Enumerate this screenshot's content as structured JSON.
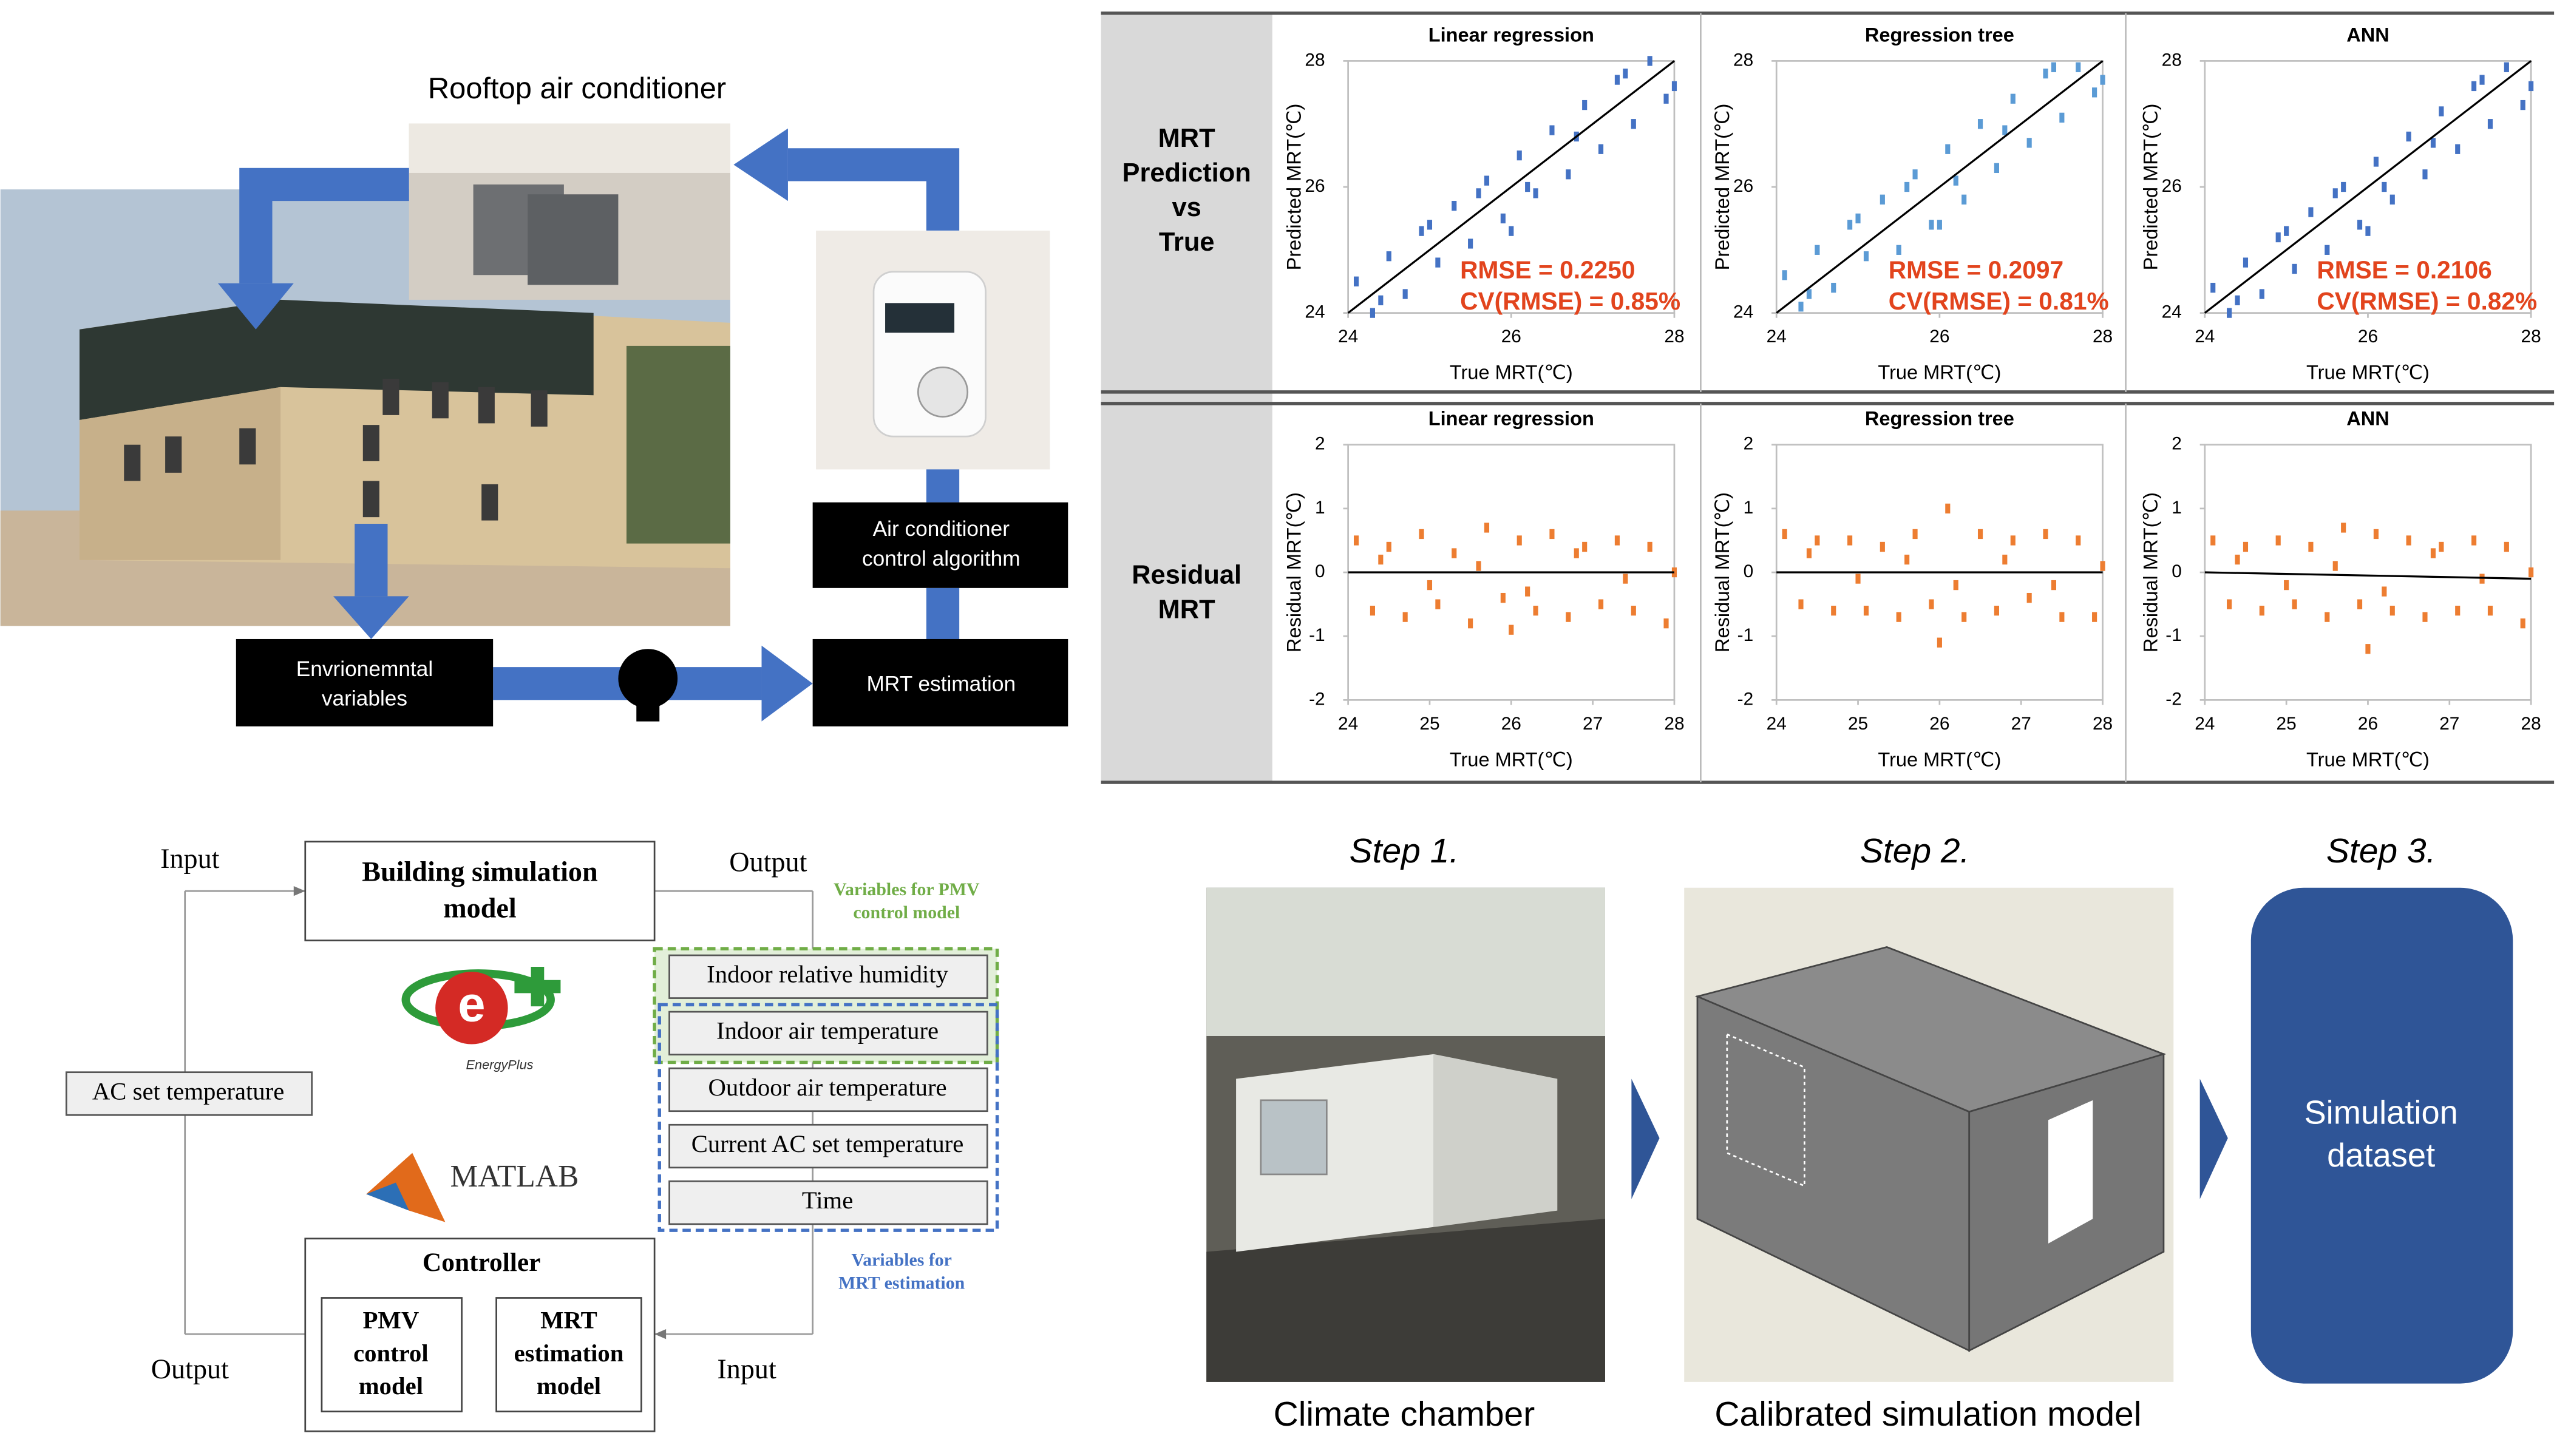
{
  "system": {
    "title": "Rooftop air conditioner",
    "nodes": [
      [
        "Envrionemntal",
        "variables"
      ],
      [
        "MRT estimation"
      ],
      [
        "Air conditioner",
        "control algorithm"
      ]
    ]
  },
  "row_labels": [
    [
      "MRT",
      "Prediction",
      "vs",
      "True"
    ],
    [
      "Residual",
      "MRT"
    ]
  ],
  "chart_data": [
    {
      "type": "scatter",
      "title": "Linear regression",
      "xlabel": "True MRT(℃)",
      "ylabel": "Predicted MRT(℃)",
      "xlim": [
        24,
        28
      ],
      "ylim": [
        24,
        28
      ],
      "xticks": [
        24,
        26,
        28
      ],
      "yticks": [
        24,
        26,
        28
      ],
      "annotations": [
        "RMSE  =  0.2250",
        "CV(RMSE)  =  0.85%"
      ],
      "series": [
        {
          "color": "#4472c4",
          "x": [
            24.1,
            24.3,
            24.5,
            24.7,
            24.9,
            25.1,
            25.3,
            25.5,
            25.7,
            25.9,
            26.1,
            26.3,
            26.5,
            26.7,
            26.9,
            27.1,
            27.3,
            27.5,
            27.7,
            27.9,
            24.4,
            25.0,
            25.6,
            26.2,
            26.8,
            27.4,
            28.0,
            26.0
          ],
          "values": [
            24.5,
            24.0,
            24.9,
            24.3,
            25.3,
            24.8,
            25.7,
            25.1,
            26.1,
            25.5,
            26.5,
            25.9,
            26.9,
            26.2,
            27.3,
            26.6,
            27.7,
            27.0,
            28.0,
            27.4,
            24.2,
            25.4,
            25.9,
            26.0,
            26.8,
            27.8,
            27.6,
            25.3
          ]
        },
        {
          "type": "line",
          "color": "#000000",
          "x": [
            24,
            28
          ],
          "values": [
            24,
            28
          ]
        }
      ]
    },
    {
      "type": "scatter",
      "title": "Regression tree",
      "xlabel": "True MRT(℃)",
      "ylabel": "Predicted MRT(℃)",
      "xlim": [
        24,
        28
      ],
      "ylim": [
        24,
        28
      ],
      "xticks": [
        24,
        26,
        28
      ],
      "yticks": [
        24,
        26,
        28
      ],
      "annotations": [
        "RMSE  =  0.2097",
        "CV(RMSE)  =  0.81%"
      ],
      "series": [
        {
          "color": "#5b9bd5",
          "x": [
            24.1,
            24.3,
            24.5,
            24.7,
            24.9,
            25.1,
            25.3,
            25.5,
            25.7,
            25.9,
            26.1,
            26.3,
            26.5,
            26.7,
            26.9,
            27.1,
            27.3,
            27.5,
            27.7,
            27.9,
            24.4,
            25.0,
            25.6,
            26.2,
            26.8,
            27.4,
            28.0,
            26.0
          ],
          "values": [
            24.6,
            24.1,
            25.0,
            24.4,
            25.4,
            24.9,
            25.8,
            25.0,
            26.2,
            25.4,
            26.6,
            25.8,
            27.0,
            26.3,
            27.4,
            26.7,
            27.8,
            27.1,
            27.9,
            27.5,
            24.3,
            25.5,
            26.0,
            26.1,
            26.9,
            27.9,
            27.7,
            25.4
          ]
        },
        {
          "type": "line",
          "color": "#000000",
          "x": [
            24,
            28
          ],
          "values": [
            24,
            28
          ]
        }
      ]
    },
    {
      "type": "scatter",
      "title": "ANN",
      "xlabel": "True MRT(℃)",
      "ylabel": "Predicted MRT(℃)",
      "xlim": [
        24,
        28
      ],
      "ylim": [
        24,
        28
      ],
      "xticks": [
        24,
        26,
        28
      ],
      "yticks": [
        24,
        26,
        28
      ],
      "annotations": [
        "RMSE  =  0.2106",
        "CV(RMSE)  =  0.82%"
      ],
      "series": [
        {
          "color": "#4472c4",
          "x": [
            24.1,
            24.3,
            24.5,
            24.7,
            24.9,
            25.1,
            25.3,
            25.5,
            25.7,
            25.9,
            26.1,
            26.3,
            26.5,
            26.7,
            26.9,
            27.1,
            27.3,
            27.5,
            27.7,
            27.9,
            24.4,
            25.0,
            25.6,
            26.2,
            26.8,
            27.4,
            28.0,
            26.0
          ],
          "values": [
            24.4,
            24.0,
            24.8,
            24.3,
            25.2,
            24.7,
            25.6,
            25.0,
            26.0,
            25.4,
            26.4,
            25.8,
            26.8,
            26.2,
            27.2,
            26.6,
            27.6,
            27.0,
            27.9,
            27.3,
            24.2,
            25.3,
            25.9,
            26.0,
            26.7,
            27.7,
            27.6,
            25.3
          ]
        },
        {
          "type": "line",
          "color": "#000000",
          "x": [
            24,
            28
          ],
          "values": [
            24,
            28
          ]
        }
      ]
    },
    {
      "type": "scatter",
      "title": "Linear regression",
      "xlabel": "True MRT(℃)",
      "ylabel": "Residual MRT(℃)",
      "xlim": [
        24,
        28
      ],
      "ylim": [
        -2,
        2
      ],
      "xticks": [
        24,
        25,
        26,
        27,
        28
      ],
      "yticks": [
        -2,
        -1,
        0,
        1,
        2
      ],
      "series": [
        {
          "color": "#ed7d31",
          "x": [
            24.1,
            24.3,
            24.5,
            24.7,
            24.9,
            25.1,
            25.3,
            25.5,
            25.7,
            25.9,
            26.1,
            26.3,
            26.5,
            26.7,
            26.9,
            27.1,
            27.3,
            27.5,
            27.7,
            27.9,
            24.4,
            25.0,
            25.6,
            26.2,
            26.8,
            27.4,
            28.0,
            26.0
          ],
          "values": [
            0.5,
            -0.6,
            0.4,
            -0.7,
            0.6,
            -0.5,
            0.3,
            -0.8,
            0.7,
            -0.4,
            0.5,
            -0.6,
            0.6,
            -0.7,
            0.4,
            -0.5,
            0.5,
            -0.6,
            0.4,
            -0.8,
            0.2,
            -0.2,
            0.1,
            -0.3,
            0.3,
            -0.1,
            0.0,
            -0.9
          ]
        },
        {
          "type": "line",
          "color": "#000000",
          "x": [
            24,
            28
          ],
          "values": [
            0,
            0
          ]
        }
      ]
    },
    {
      "type": "scatter",
      "title": "Regression tree",
      "xlabel": "True MRT(℃)",
      "ylabel": "Residual MRT(℃)",
      "xlim": [
        24,
        28
      ],
      "ylim": [
        -2,
        2
      ],
      "xticks": [
        24,
        25,
        26,
        27,
        28
      ],
      "yticks": [
        -2,
        -1,
        0,
        1,
        2
      ],
      "series": [
        {
          "color": "#ed7d31",
          "x": [
            24.1,
            24.3,
            24.5,
            24.7,
            24.9,
            25.1,
            25.3,
            25.5,
            25.7,
            25.9,
            26.1,
            26.3,
            26.5,
            26.7,
            26.9,
            27.1,
            27.3,
            27.5,
            27.7,
            27.9,
            24.4,
            25.0,
            25.6,
            26.2,
            26.8,
            27.4,
            28.0,
            26.0
          ],
          "values": [
            0.6,
            -0.5,
            0.5,
            -0.6,
            0.5,
            -0.6,
            0.4,
            -0.7,
            0.6,
            -0.5,
            1.0,
            -0.7,
            0.6,
            -0.6,
            0.5,
            -0.4,
            0.6,
            -0.7,
            0.5,
            -0.7,
            0.3,
            -0.1,
            0.2,
            -0.2,
            0.2,
            -0.2,
            0.1,
            -1.1
          ]
        },
        {
          "type": "line",
          "color": "#000000",
          "x": [
            24,
            28
          ],
          "values": [
            0,
            0
          ]
        }
      ]
    },
    {
      "type": "scatter",
      "title": "ANN",
      "xlabel": "True MRT(℃)",
      "ylabel": "Residual MRT(℃)",
      "xlim": [
        24,
        28
      ],
      "ylim": [
        -2,
        2
      ],
      "xticks": [
        24,
        25,
        26,
        27,
        28
      ],
      "yticks": [
        -2,
        -1,
        0,
        1,
        2
      ],
      "series": [
        {
          "color": "#ed7d31",
          "x": [
            24.1,
            24.3,
            24.5,
            24.7,
            24.9,
            25.1,
            25.3,
            25.5,
            25.7,
            25.9,
            26.1,
            26.3,
            26.5,
            26.7,
            26.9,
            27.1,
            27.3,
            27.5,
            27.7,
            27.9,
            24.4,
            25.0,
            25.6,
            26.2,
            26.8,
            27.4,
            28.0,
            26.0
          ],
          "values": [
            0.5,
            -0.5,
            0.4,
            -0.6,
            0.5,
            -0.5,
            0.4,
            -0.7,
            0.7,
            -0.5,
            0.6,
            -0.6,
            0.5,
            -0.7,
            0.4,
            -0.6,
            0.5,
            -0.6,
            0.4,
            -0.8,
            0.2,
            -0.2,
            0.1,
            -0.3,
            0.3,
            -0.1,
            0.0,
            -1.2
          ]
        },
        {
          "type": "line",
          "color": "#000000",
          "x": [
            24,
            28
          ],
          "values": [
            0,
            -0.1
          ]
        }
      ]
    }
  ],
  "simulation_framework": {
    "input_top": "Input",
    "output_top": "Output",
    "output_bottom": "Output",
    "input_bottom": "Input",
    "building_model": [
      "Building simulation",
      "model"
    ],
    "pmv_variables_label": [
      "Variables for PMV",
      "control model"
    ],
    "variables": [
      "Indoor relative humidity",
      "Indoor air temperature",
      "Outdoor air temperature",
      "Current AC set temperature",
      "Time"
    ],
    "mrt_variables_label": [
      "Variables for",
      "MRT estimation"
    ],
    "ac_set_temperature": "AC set temperature",
    "energyplus": "EnergyPlus",
    "matlab": "MATLAB",
    "controller": {
      "title": "Controller",
      "pmv_model": [
        "PMV",
        "control",
        "model"
      ],
      "mrt_model": [
        "MRT",
        "estimation",
        "model"
      ]
    }
  },
  "steps": [
    {
      "label": "Step 1.",
      "caption": "Climate chamber"
    },
    {
      "label": "Step 2.",
      "caption": "Calibrated simulation model"
    },
    {
      "label": "Step 3.",
      "box_text": [
        "Simulation",
        "dataset"
      ]
    }
  ]
}
